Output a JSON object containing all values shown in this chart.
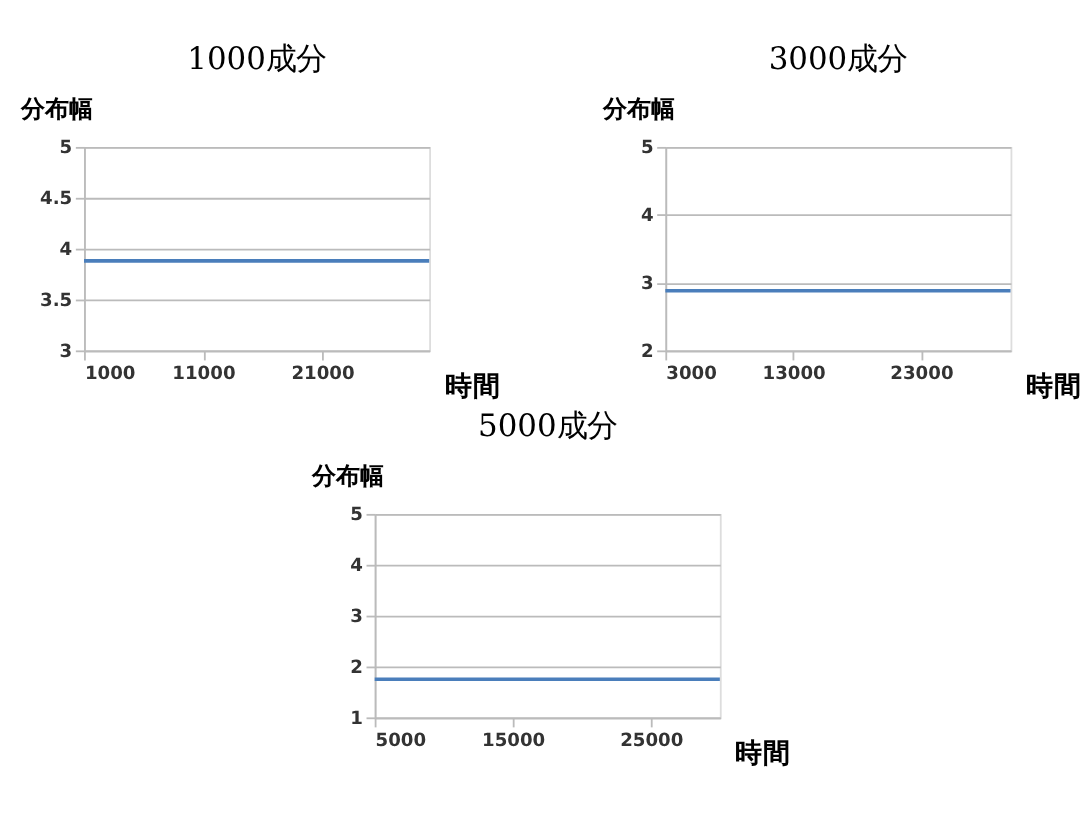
{
  "chart_data": [
    {
      "type": "line",
      "title": "1000成分",
      "xlabel": "時間",
      "ylabel": "分布幅",
      "x": [
        1000,
        30000
      ],
      "series": [
        {
          "color": "#4a7ebb",
          "values": [
            3.88,
            3.88
          ]
        }
      ],
      "xlim": [
        1000,
        30000
      ],
      "xticks": [
        1000,
        11000,
        21000
      ],
      "ylim": [
        3,
        5
      ],
      "yticks": [
        3,
        3.5,
        4,
        4.5,
        5
      ],
      "grid": "y",
      "legend": false
    },
    {
      "type": "line",
      "title": "3000成分",
      "xlabel": "時間",
      "ylabel": "分布幅",
      "x": [
        3000,
        30000
      ],
      "series": [
        {
          "color": "#4a7ebb",
          "values": [
            2.88,
            2.88
          ]
        }
      ],
      "xlim": [
        3000,
        30000
      ],
      "xticks": [
        3000,
        13000,
        23000
      ],
      "ylim": [
        2,
        5
      ],
      "yticks": [
        2,
        3,
        4,
        5
      ],
      "grid": "y",
      "legend": false
    },
    {
      "type": "line",
      "title": "5000成分",
      "xlabel": "時間",
      "ylabel": "分布幅",
      "x": [
        5000,
        30000
      ],
      "series": [
        {
          "color": "#4a7ebb",
          "values": [
            1.75,
            1.75
          ]
        }
      ],
      "xlim": [
        5000,
        30000
      ],
      "xticks": [
        5000,
        15000,
        25000
      ],
      "ylim": [
        1,
        5
      ],
      "yticks": [
        1,
        2,
        3,
        4,
        5
      ],
      "grid": "y",
      "legend": false
    }
  ]
}
